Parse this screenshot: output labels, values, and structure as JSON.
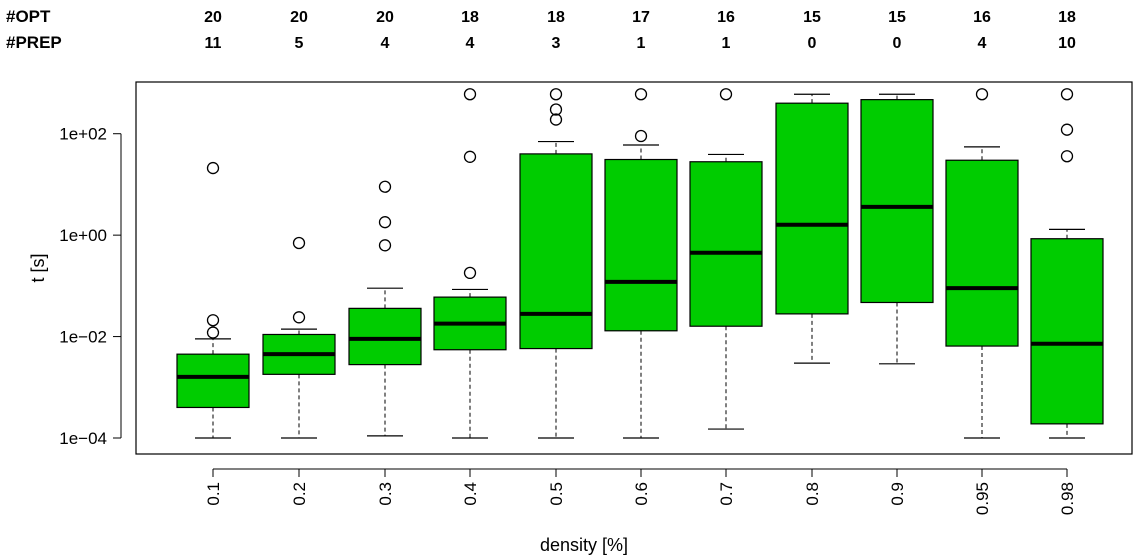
{
  "chart_data": {
    "type": "boxplot",
    "xlabel": "density [%]",
    "ylabel": "t [s]",
    "y_scale": "log10",
    "ylim": [
      0.0001,
      1000
    ],
    "y_ticks": [
      {
        "value": 0.0001,
        "label": "1e−04"
      },
      {
        "value": 0.01,
        "label": "1e−02"
      },
      {
        "value": 1,
        "label": "1e+00"
      },
      {
        "value": 100,
        "label": "1e+02"
      }
    ],
    "box_color": "#00cc00",
    "top_rows": [
      {
        "label": "#OPT",
        "values": [
          "20",
          "20",
          "20",
          "18",
          "18",
          "17",
          "16",
          "15",
          "15",
          "16",
          "18"
        ]
      },
      {
        "label": "#PREP",
        "values": [
          "11",
          "5",
          "4",
          "4",
          "3",
          "1",
          "1",
          "0",
          "0",
          "4",
          "10"
        ]
      }
    ],
    "categories": [
      "0.1",
      "0.2",
      "0.3",
      "0.4",
      "0.5",
      "0.6",
      "0.7",
      "0.8",
      "0.9",
      "0.95",
      "0.98"
    ],
    "boxes": [
      {
        "whisker_low": 0.0001,
        "q1": 0.0004,
        "median": 0.0016,
        "q3": 0.0045,
        "whisker_high": 0.009,
        "outliers": [
          21,
          0.021,
          0.012
        ]
      },
      {
        "whisker_low": 0.0001,
        "q1": 0.0018,
        "median": 0.0045,
        "q3": 0.011,
        "whisker_high": 0.014,
        "outliers": [
          0.7,
          0.024
        ]
      },
      {
        "whisker_low": 0.00011,
        "q1": 0.0028,
        "median": 0.009,
        "q3": 0.036,
        "whisker_high": 0.09,
        "outliers": [
          9,
          1.8,
          0.63
        ]
      },
      {
        "whisker_low": 0.0001,
        "q1": 0.0055,
        "median": 0.018,
        "q3": 0.06,
        "whisker_high": 0.085,
        "outliers": [
          600,
          35,
          0.18
        ]
      },
      {
        "whisker_low": 0.0001,
        "q1": 0.0058,
        "median": 0.028,
        "q3": 40,
        "whisker_high": 70,
        "outliers": [
          600,
          300,
          190
        ]
      },
      {
        "whisker_low": 0.0001,
        "q1": 0.013,
        "median": 0.12,
        "q3": 31,
        "whisker_high": 60,
        "outliers": [
          600,
          90
        ]
      },
      {
        "whisker_low": 0.00015,
        "q1": 0.016,
        "median": 0.45,
        "q3": 28,
        "whisker_high": 39,
        "outliers": [
          600
        ]
      },
      {
        "whisker_low": 0.003,
        "q1": 0.028,
        "median": 1.6,
        "q3": 400,
        "whisker_high": 600,
        "outliers": []
      },
      {
        "whisker_low": 0.0029,
        "q1": 0.047,
        "median": 3.6,
        "q3": 470,
        "whisker_high": 600,
        "outliers": []
      },
      {
        "whisker_low": 0.0001,
        "q1": 0.0065,
        "median": 0.09,
        "q3": 30,
        "whisker_high": 55,
        "outliers": [
          600
        ]
      },
      {
        "whisker_low": 0.0001,
        "q1": 0.00019,
        "median": 0.0072,
        "q3": 0.85,
        "whisker_high": 1.3,
        "outliers": [
          600,
          120,
          36
        ]
      }
    ]
  }
}
